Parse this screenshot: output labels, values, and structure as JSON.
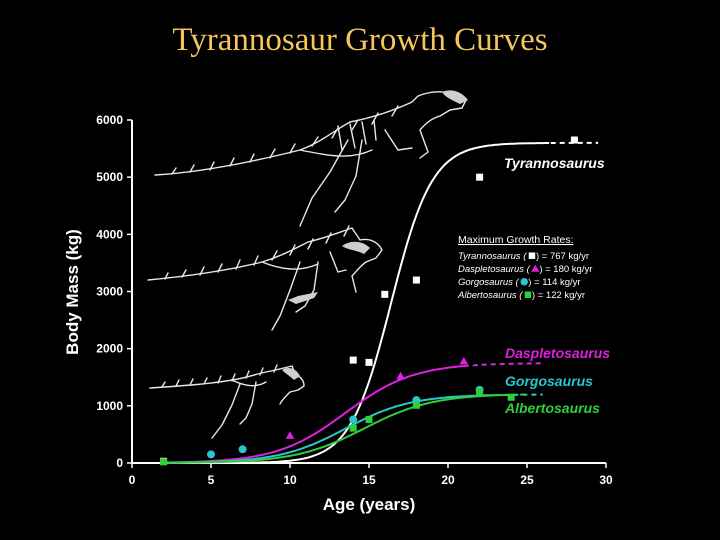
{
  "slide": {
    "title": "Tyrannosaur Growth Curves"
  },
  "chart_data": {
    "type": "scatter",
    "title": "",
    "xlabel": "Age (years)",
    "ylabel": "Body Mass (kg)",
    "xlim": [
      0,
      30
    ],
    "ylim": [
      0,
      6000
    ],
    "x_ticks": [
      0,
      5,
      10,
      15,
      20,
      25,
      30
    ],
    "y_ticks": [
      0,
      1000,
      2000,
      3000,
      4000,
      5000,
      6000
    ],
    "grid": false,
    "series": [
      {
        "name": "Tyrannosaurus",
        "color": "#ffffff",
        "marker": "square",
        "points": [
          [
            2,
            30
          ],
          [
            14,
            1800
          ],
          [
            15,
            1760
          ],
          [
            16,
            2950
          ],
          [
            18,
            3200
          ],
          [
            22,
            5000
          ],
          [
            28,
            5650
          ]
        ],
        "curve": {
          "asymptote": 5600,
          "k": 0.77,
          "midpoint": 16.4,
          "x_from": 2,
          "x_to": 26.5
        },
        "dashed_extension": [
          26.5,
          29.5
        ]
      },
      {
        "name": "Daspletosaurus",
        "color": "#e020e0",
        "marker": "triangle",
        "points": [
          [
            10,
            480
          ],
          [
            17,
            1520
          ],
          [
            21,
            1780
          ]
        ],
        "curve": {
          "asymptote": 1750,
          "k": 0.46,
          "midpoint": 13.5,
          "x_from": 2,
          "x_to": 21
        },
        "dashed_extension": [
          21,
          26
        ]
      },
      {
        "name": "Gorgosaurus",
        "color": "#2ac6cc",
        "marker": "circle",
        "points": [
          [
            5,
            150
          ],
          [
            7,
            240
          ],
          [
            14,
            760
          ],
          [
            18,
            1100
          ],
          [
            22,
            1280
          ]
        ],
        "curve": {
          "asymptote": 1200,
          "k": 0.48,
          "midpoint": 13.5,
          "x_from": 2,
          "x_to": 23
        },
        "dashed_extension": [
          23,
          26
        ]
      },
      {
        "name": "Albertosaurus",
        "color": "#2fcf3c",
        "marker": "square",
        "points": [
          [
            2,
            20
          ],
          [
            14,
            610
          ],
          [
            15,
            760
          ],
          [
            18,
            1010
          ],
          [
            22,
            1240
          ],
          [
            24,
            1150
          ]
        ],
        "curve": {
          "asymptote": 1210,
          "k": 0.46,
          "midpoint": 14.7,
          "x_from": 2,
          "x_to": 24
        },
        "dashed_extension": [
          24,
          25
        ]
      }
    ],
    "series_labels": [
      "Tyrannosaurus",
      "Daspletosaurus",
      "Gorgosaurus",
      "Albertosaurus"
    ],
    "legend": {
      "title": "Maximum Growth Rates:",
      "placement": "center-right",
      "entries": [
        {
          "species": "Tyrannosaurus",
          "rate": " = 767 kg/yr",
          "color": "#ffffff",
          "marker": "square"
        },
        {
          "species": "Daspletosaurus",
          "rate": " = 180 kg/yr",
          "color": "#e020e0",
          "marker": "triangle"
        },
        {
          "species": "Gorgosaurus",
          "rate": " = 114 kg/yr",
          "color": "#2ac6cc",
          "marker": "circle"
        },
        {
          "species": "Albertosaurus",
          "rate": " = 122 kg/yr",
          "color": "#2fcf3c",
          "marker": "square"
        }
      ]
    },
    "illustrations": [
      "large-skeleton",
      "medium-skeleton",
      "small-skeleton"
    ]
  }
}
